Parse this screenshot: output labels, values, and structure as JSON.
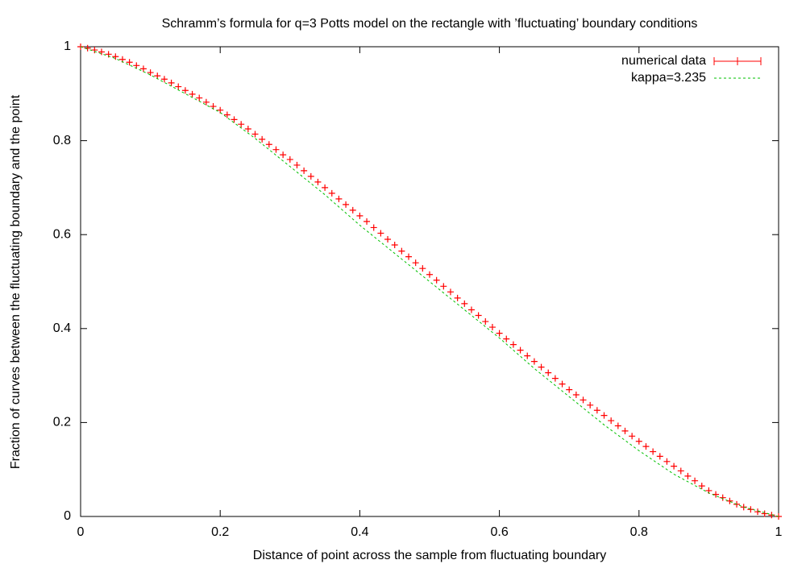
{
  "chart_data": {
    "type": "line",
    "title": "Schramm’s formula for q=3 Potts model on the rectangle with ’fluctuating’ boundary conditions",
    "xlabel": "Distance of point across the sample from fluctuating boundary",
    "ylabel": "Fraction of curves between the fluctuating boundary and the point",
    "xlim": [
      0,
      1
    ],
    "ylim": [
      0,
      1
    ],
    "xticks": [
      0,
      0.2,
      0.4,
      0.6,
      0.8,
      1
    ],
    "yticks": [
      0,
      0.2,
      0.4,
      0.6,
      0.8,
      1
    ],
    "legend": "top-right",
    "series": [
      {
        "name": "numerical data",
        "color": "#ff0000",
        "style": "points",
        "x": [
          0,
          0.01,
          0.02,
          0.03,
          0.04,
          0.05,
          0.06,
          0.07,
          0.08,
          0.09,
          0.1,
          0.11,
          0.12,
          0.13,
          0.14,
          0.15,
          0.16,
          0.17,
          0.18,
          0.19,
          0.2,
          0.21,
          0.22,
          0.23,
          0.24,
          0.25,
          0.26,
          0.27,
          0.28,
          0.29,
          0.3,
          0.31,
          0.32,
          0.33,
          0.34,
          0.35,
          0.36,
          0.37,
          0.38,
          0.39,
          0.4,
          0.41,
          0.42,
          0.43,
          0.44,
          0.45,
          0.46,
          0.47,
          0.48,
          0.49,
          0.5,
          0.51,
          0.52,
          0.53,
          0.54,
          0.55,
          0.56,
          0.57,
          0.58,
          0.59,
          0.6,
          0.61,
          0.62,
          0.63,
          0.64,
          0.65,
          0.66,
          0.67,
          0.68,
          0.69,
          0.7,
          0.71,
          0.72,
          0.73,
          0.74,
          0.75,
          0.76,
          0.77,
          0.78,
          0.79,
          0.8,
          0.81,
          0.82,
          0.83,
          0.84,
          0.85,
          0.86,
          0.87,
          0.88,
          0.89,
          0.9,
          0.91,
          0.92,
          0.93,
          0.94,
          0.95,
          0.96,
          0.97,
          0.98,
          0.99,
          1
        ],
        "values": [
          1,
          0.997,
          0.993,
          0.989,
          0.984,
          0.979,
          0.973,
          0.967,
          0.96,
          0.953,
          0.945,
          0.938,
          0.931,
          0.923,
          0.915,
          0.907,
          0.899,
          0.891,
          0.882,
          0.873,
          0.865,
          0.855,
          0.845,
          0.835,
          0.825,
          0.814,
          0.803,
          0.792,
          0.781,
          0.77,
          0.76,
          0.748,
          0.736,
          0.724,
          0.712,
          0.7,
          0.688,
          0.676,
          0.664,
          0.652,
          0.64,
          0.628,
          0.615,
          0.603,
          0.59,
          0.578,
          0.565,
          0.553,
          0.54,
          0.528,
          0.515,
          0.503,
          0.49,
          0.478,
          0.465,
          0.453,
          0.44,
          0.428,
          0.415,
          0.403,
          0.39,
          0.378,
          0.366,
          0.354,
          0.342,
          0.33,
          0.318,
          0.306,
          0.294,
          0.282,
          0.27,
          0.259,
          0.248,
          0.237,
          0.226,
          0.215,
          0.204,
          0.193,
          0.182,
          0.171,
          0.16,
          0.149,
          0.138,
          0.128,
          0.117,
          0.107,
          0.097,
          0.086,
          0.076,
          0.065,
          0.055,
          0.047,
          0.04,
          0.033,
          0.026,
          0.02,
          0.015,
          0.01,
          0.006,
          0.003,
          0
        ]
      },
      {
        "name": "kappa=3.235",
        "color": "#00c000",
        "style": "dashed",
        "x": [
          0,
          0.05,
          0.1,
          0.15,
          0.2,
          0.25,
          0.3,
          0.35,
          0.4,
          0.45,
          0.5,
          0.55,
          0.6,
          0.65,
          0.7,
          0.75,
          0.8,
          0.85,
          0.9,
          0.95,
          1
        ],
        "values": [
          1,
          0.975,
          0.94,
          0.9,
          0.86,
          0.805,
          0.745,
          0.685,
          0.62,
          0.56,
          0.5,
          0.44,
          0.38,
          0.315,
          0.255,
          0.195,
          0.14,
          0.09,
          0.05,
          0.02,
          0
        ]
      }
    ]
  }
}
